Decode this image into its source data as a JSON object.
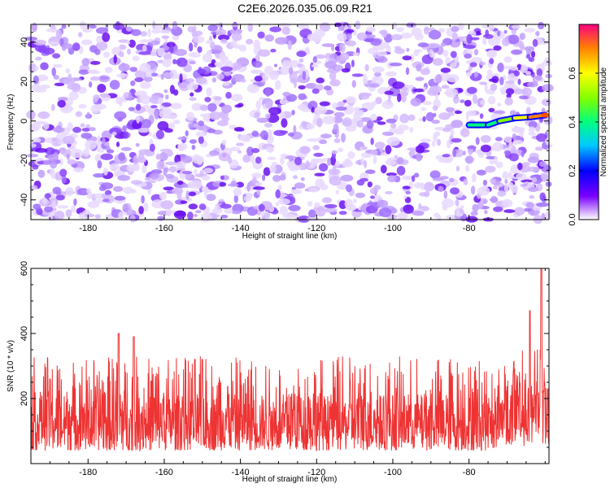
{
  "title": "C2E6.2026.035.06.09.R21",
  "chart_data": [
    {
      "type": "heatmap",
      "xlabel": "Height of straight line (km)",
      "ylabel": "Frequency (Hz)",
      "xlim": [
        -195,
        -59
      ],
      "ylim": [
        -50,
        49
      ],
      "xticks": [
        -180,
        -160,
        -140,
        -120,
        -100,
        -80
      ],
      "yticks": [
        -40,
        -20,
        0,
        20,
        40
      ],
      "colorbar": {
        "label": "Normalized spectral amplitude",
        "range": [
          0.0,
          0.8
        ],
        "ticks": [
          0.0,
          0.2,
          0.4,
          0.6
        ],
        "colormap": "rainbow-white-to-red"
      },
      "ridge": {
        "description_points_xy": [
          [
            -80,
            -2
          ],
          [
            -75,
            -2
          ],
          [
            -72,
            0
          ],
          [
            -68,
            1.5
          ],
          [
            -64,
            2
          ],
          [
            -60,
            3
          ]
        ],
        "values": [
          0.3,
          0.3,
          0.45,
          0.5,
          0.55,
          0.75
        ]
      }
    },
    {
      "type": "line",
      "xlabel": "Height of straight line (km)",
      "ylabel": "SNR (10 * v/v)",
      "xlim": [
        -195,
        -59
      ],
      "ylim": [
        0,
        600
      ],
      "xticks": [
        -180,
        -160,
        -140,
        -120,
        -100,
        -80
      ],
      "yticks": [
        200,
        400,
        600
      ],
      "series": [
        {
          "color": "#ee3333",
          "baseline_mean": 120,
          "noise_range": [
            40,
            330
          ],
          "peaks": [
            [
              -190,
              260
            ],
            [
              -172,
              400
            ],
            [
              -168,
              390
            ],
            [
              -150,
              320
            ],
            [
              -64,
              470
            ],
            [
              -61,
              600
            ]
          ]
        }
      ]
    }
  ]
}
